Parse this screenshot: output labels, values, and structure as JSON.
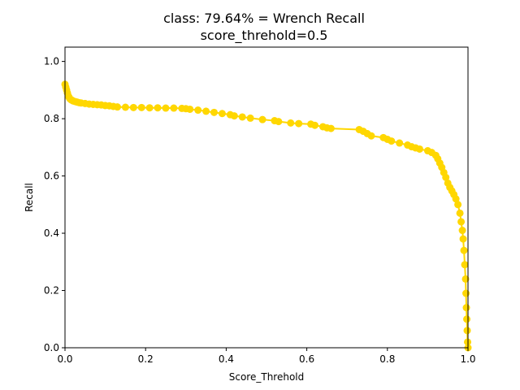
{
  "chart_data": {
    "type": "line",
    "title_line1": "class: 79.64% = Wrench Recall",
    "title_line2": "score_threhold=0.5",
    "xlabel": "Score_Threhold",
    "ylabel": "Recall",
    "xlim": [
      0.0,
      1.0
    ],
    "ylim": [
      0.0,
      1.05
    ],
    "xticks": [
      "0.0",
      "0.2",
      "0.4",
      "0.6",
      "0.8",
      "1.0"
    ],
    "yticks": [
      "0.0",
      "0.2",
      "0.4",
      "0.6",
      "0.8",
      "1.0"
    ],
    "grid": false,
    "series": [
      {
        "color": "#FFD700",
        "marker": "circle",
        "x": [
          0.0,
          0.002,
          0.004,
          0.006,
          0.008,
          0.01,
          0.012,
          0.015,
          0.018,
          0.02,
          0.025,
          0.03,
          0.035,
          0.04,
          0.05,
          0.06,
          0.07,
          0.08,
          0.09,
          0.1,
          0.11,
          0.12,
          0.13,
          0.15,
          0.17,
          0.19,
          0.21,
          0.23,
          0.25,
          0.27,
          0.29,
          0.3,
          0.31,
          0.33,
          0.35,
          0.37,
          0.39,
          0.41,
          0.42,
          0.44,
          0.46,
          0.49,
          0.52,
          0.53,
          0.56,
          0.58,
          0.61,
          0.62,
          0.64,
          0.65,
          0.66,
          0.73,
          0.74,
          0.75,
          0.76,
          0.79,
          0.8,
          0.81,
          0.83,
          0.85,
          0.86,
          0.87,
          0.88,
          0.9,
          0.91,
          0.92,
          0.925,
          0.93,
          0.935,
          0.94,
          0.945,
          0.95,
          0.955,
          0.96,
          0.965,
          0.97,
          0.975,
          0.98,
          0.983,
          0.986,
          0.988,
          0.99,
          0.992,
          0.994,
          0.995,
          0.996,
          0.997,
          0.998,
          0.999,
          1.0
        ],
        "y": [
          0.92,
          0.91,
          0.9,
          0.89,
          0.88,
          0.875,
          0.87,
          0.866,
          0.864,
          0.862,
          0.86,
          0.858,
          0.856,
          0.855,
          0.853,
          0.851,
          0.85,
          0.849,
          0.848,
          0.846,
          0.845,
          0.843,
          0.841,
          0.84,
          0.839,
          0.839,
          0.838,
          0.838,
          0.837,
          0.837,
          0.836,
          0.835,
          0.833,
          0.83,
          0.826,
          0.822,
          0.818,
          0.814,
          0.81,
          0.806,
          0.802,
          0.797,
          0.793,
          0.79,
          0.785,
          0.783,
          0.781,
          0.777,
          0.772,
          0.768,
          0.766,
          0.762,
          0.756,
          0.748,
          0.74,
          0.734,
          0.728,
          0.722,
          0.715,
          0.708,
          0.702,
          0.698,
          0.694,
          0.688,
          0.682,
          0.672,
          0.66,
          0.645,
          0.63,
          0.612,
          0.595,
          0.575,
          0.56,
          0.548,
          0.535,
          0.52,
          0.5,
          0.47,
          0.44,
          0.41,
          0.38,
          0.34,
          0.29,
          0.24,
          0.19,
          0.14,
          0.1,
          0.06,
          0.02,
          0.0
        ]
      }
    ]
  }
}
